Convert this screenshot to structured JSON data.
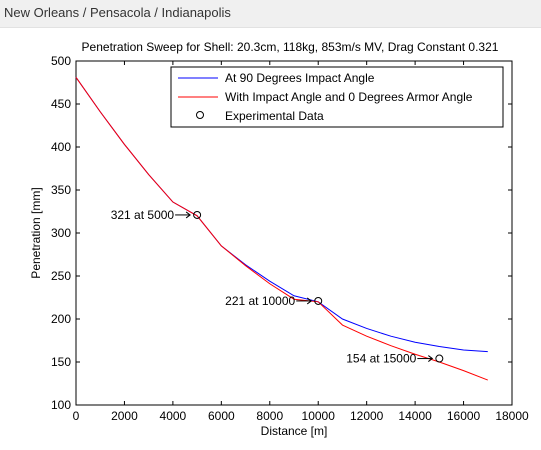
{
  "window": {
    "title": "New Orleans / Pensacola / Indianapolis"
  },
  "chart_data": {
    "type": "line",
    "title": "Penetration Sweep for Shell: 20.3cm, 118kg, 853m/s MV, Drag Constant 0.321",
    "xlabel": "Distance [m]",
    "ylabel": "Penetration [mm]",
    "xlim": [
      0,
      18000
    ],
    "ylim": [
      100,
      500
    ],
    "xticks": [
      0,
      2000,
      4000,
      6000,
      8000,
      10000,
      12000,
      14000,
      16000,
      18000
    ],
    "yticks": [
      100,
      150,
      200,
      250,
      300,
      350,
      400,
      450,
      500
    ],
    "grid": false,
    "legend_position": "top-right",
    "colors": {
      "series_90": "#0000ff",
      "series_armor0": "#ff0000",
      "marker_stroke": "#000000",
      "axis": "#000000"
    },
    "series": [
      {
        "name": "At 90 Degrees Impact Angle",
        "x": [
          0,
          1000,
          2000,
          3000,
          4000,
          5000,
          6000,
          7000,
          8000,
          9000,
          10000,
          11000,
          12000,
          13000,
          14000,
          15000,
          16000,
          17000
        ],
        "y": [
          481,
          441,
          403,
          368,
          336,
          320,
          285,
          263,
          244,
          227,
          220,
          200,
          189,
          180,
          173,
          168,
          164,
          162
        ]
      },
      {
        "name": "With Impact Angle and 0 Degrees Armor Angle",
        "x": [
          0,
          1000,
          2000,
          3000,
          4000,
          5000,
          6000,
          7000,
          8000,
          9000,
          10000,
          11000,
          12000,
          13000,
          14000,
          15000,
          16000,
          17000
        ],
        "y": [
          481,
          441,
          403,
          368,
          336,
          320,
          285,
          262,
          241,
          223,
          220,
          193,
          180,
          169,
          159,
          150,
          140,
          129
        ]
      }
    ],
    "experimental": {
      "name": "Experimental Data",
      "points": [
        {
          "x": 5000,
          "y": 321,
          "label": "321 at 5000"
        },
        {
          "x": 10000,
          "y": 221,
          "label": "221 at 10000"
        },
        {
          "x": 15000,
          "y": 154,
          "label": "154 at 15000"
        }
      ]
    }
  }
}
